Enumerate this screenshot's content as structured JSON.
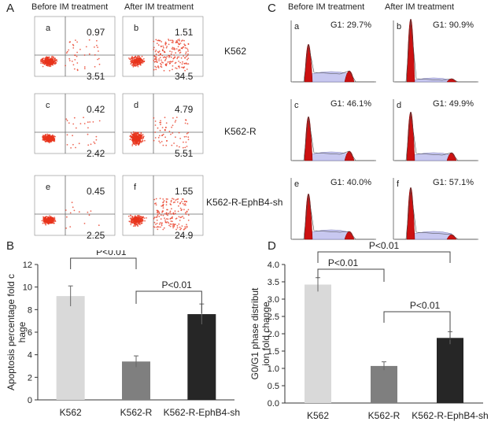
{
  "panel_a": {
    "letter": "A",
    "col_headers": [
      "Before IM treatment",
      "After IM treatment"
    ],
    "row_labels": [
      "K562",
      "K562-R",
      "K562-R-EphB4-sh"
    ],
    "rows": [
      {
        "before": {
          "sub": "a",
          "upper_right": "0.97",
          "lower_right": "3.51"
        },
        "after": {
          "sub": "b",
          "upper_right": "1.51",
          "lower_right": "34.5"
        }
      },
      {
        "before": {
          "sub": "c",
          "upper_right": "0.42",
          "lower_right": "2.42"
        },
        "after": {
          "sub": "d",
          "upper_right": "4.79",
          "lower_right": "5.51"
        }
      },
      {
        "before": {
          "sub": "e",
          "upper_right": "0.45",
          "lower_right": "2.25"
        },
        "after": {
          "sub": "f",
          "upper_right": "1.55",
          "lower_right": "24.9"
        }
      }
    ]
  },
  "panel_c": {
    "letter": "C",
    "col_headers": [
      "Before IM treatment",
      "After IM treatment"
    ],
    "rows": [
      {
        "before": {
          "sub": "a",
          "g1": "G1: 29.7%"
        },
        "after": {
          "sub": "b",
          "g1": "G1: 90.9%"
        }
      },
      {
        "before": {
          "sub": "c",
          "g1": "G1:  46.1%"
        },
        "after": {
          "sub": "d",
          "g1": "G1: 49.9%"
        }
      },
      {
        "before": {
          "sub": "e",
          "g1": "G1: 40.0%"
        },
        "after": {
          "sub": "f",
          "g1": "G1:  57.1%"
        }
      }
    ]
  },
  "colors": {
    "dots": "#e8341c",
    "peak_red": "#cc1111",
    "fill_blue": "#c8c8f0",
    "bar_light": "#d9d9d9",
    "bar_mid": "#7f7f7f",
    "bar_dark": "#262626"
  },
  "chart_data": [
    {
      "panel": "B",
      "type": "bar",
      "categories": [
        "K562",
        "K562-R",
        "K562-R-EphB4-sh"
      ],
      "values": [
        9.2,
        3.4,
        7.6
      ],
      "errors": [
        0.9,
        0.5,
        0.9
      ],
      "ylabel": "Apoptosis percentage fold chage",
      "ylim": [
        0,
        12
      ],
      "yticks": [
        0,
        2,
        4,
        6,
        8,
        10,
        12
      ],
      "annotations": [
        {
          "text": "P<0.01",
          "from": 0,
          "to": 1
        },
        {
          "text": "P<0.01",
          "from": 1,
          "to": 2
        }
      ]
    },
    {
      "panel": "D",
      "type": "bar",
      "categories": [
        "K562",
        "K562-R",
        "K562-R-EphB4-sh"
      ],
      "values": [
        3.42,
        1.07,
        1.88
      ],
      "errors": [
        0.2,
        0.12,
        0.18
      ],
      "ylabel": "G0/G1 phase distribution fold change",
      "ylim": [
        0,
        4.0
      ],
      "yticks": [
        "0.0",
        "0.5",
        "1.0",
        "1.5",
        "2.0",
        "2.5",
        "3.0",
        "3.5",
        "4.0"
      ],
      "annotations": [
        {
          "text": "P<0.01",
          "from": 0,
          "to": 2
        },
        {
          "text": "P<0.01",
          "from": 0,
          "to": 1
        },
        {
          "text": "P<0.01",
          "from": 1,
          "to": 2
        }
      ]
    }
  ]
}
